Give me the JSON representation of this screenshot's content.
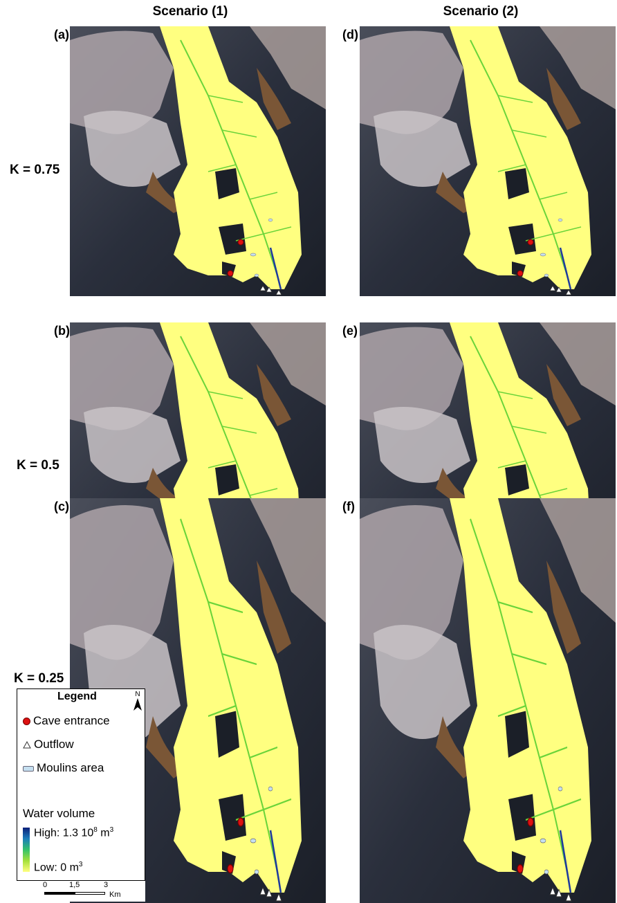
{
  "columns": [
    "Scenario (1)",
    "Scenario (2)"
  ],
  "rows": [
    "K = 0.75",
    "K = 0.5",
    "K = 0.25"
  ],
  "panels": [
    "(a)",
    "(b)",
    "(c)",
    "(d)",
    "(e)",
    "(f)"
  ],
  "legend": {
    "title": "Legend",
    "north": "N",
    "cave_entrance": "Cave entrance",
    "outflow": "Outflow",
    "moulins": "Moulins area",
    "water_volume": "Water volume",
    "high": "High: 1.3 10",
    "high_exp": "8",
    "high_unit": "m",
    "high_unit_exp": "3",
    "low": "Low: 0 m",
    "low_exp": "3"
  },
  "scale": {
    "t0": "0",
    "t1": "1,5",
    "t2": "3",
    "unit": "Km"
  },
  "colors": {
    "glacier": "#ffff80",
    "stream": "#6ad43a",
    "main_channel": "#1e3a9e",
    "cave": "#dd1111",
    "moraine": "#7a5636"
  }
}
